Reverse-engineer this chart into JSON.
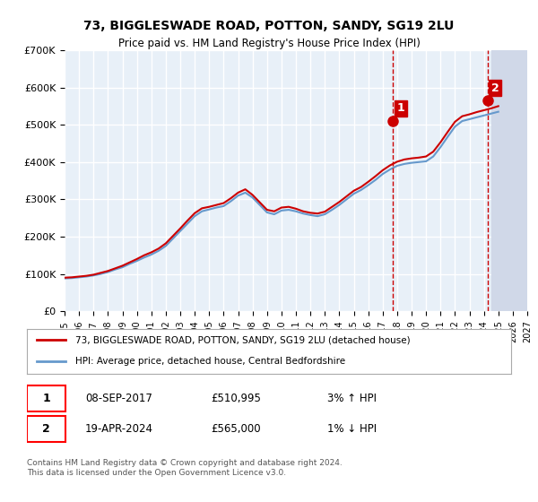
{
  "title": "73, BIGGLESWADE ROAD, POTTON, SANDY, SG19 2LU",
  "subtitle": "Price paid vs. HM Land Registry's House Price Index (HPI)",
  "ylabel": "",
  "xlabel": "",
  "xlim": [
    1995,
    2027
  ],
  "ylim": [
    0,
    700000
  ],
  "yticks": [
    0,
    100000,
    200000,
    300000,
    400000,
    500000,
    600000,
    700000
  ],
  "ytick_labels": [
    "£0",
    "£100K",
    "£200K",
    "£300K",
    "£400K",
    "£500K",
    "£600K",
    "£700K"
  ],
  "xticks": [
    1995,
    1996,
    1997,
    1998,
    1999,
    2000,
    2001,
    2002,
    2003,
    2004,
    2005,
    2006,
    2007,
    2008,
    2009,
    2010,
    2011,
    2012,
    2013,
    2014,
    2015,
    2016,
    2017,
    2018,
    2019,
    2020,
    2021,
    2022,
    2023,
    2024,
    2025,
    2026,
    2027
  ],
  "hpi_x": [
    1995.0,
    1995.5,
    1996.0,
    1996.5,
    1997.0,
    1997.5,
    1998.0,
    1998.5,
    1999.0,
    1999.5,
    2000.0,
    2000.5,
    2001.0,
    2001.5,
    2002.0,
    2002.5,
    2003.0,
    2003.5,
    2004.0,
    2004.5,
    2005.0,
    2005.5,
    2006.0,
    2006.5,
    2007.0,
    2007.5,
    2008.0,
    2008.5,
    2009.0,
    2009.5,
    2010.0,
    2010.5,
    2011.0,
    2011.5,
    2012.0,
    2012.5,
    2013.0,
    2013.5,
    2014.0,
    2014.5,
    2015.0,
    2015.5,
    2016.0,
    2016.5,
    2017.0,
    2017.5,
    2018.0,
    2018.5,
    2019.0,
    2019.5,
    2020.0,
    2020.5,
    2021.0,
    2021.5,
    2022.0,
    2022.5,
    2023.0,
    2023.5,
    2024.0,
    2024.5,
    2025.0
  ],
  "hpi_y": [
    88000,
    89000,
    91000,
    93000,
    96000,
    100000,
    105000,
    112000,
    118000,
    127000,
    135000,
    144000,
    152000,
    162000,
    175000,
    195000,
    215000,
    235000,
    255000,
    268000,
    273000,
    278000,
    282000,
    295000,
    310000,
    318000,
    305000,
    285000,
    265000,
    260000,
    270000,
    272000,
    268000,
    262000,
    258000,
    255000,
    260000,
    272000,
    285000,
    300000,
    315000,
    325000,
    338000,
    352000,
    368000,
    380000,
    390000,
    395000,
    398000,
    400000,
    402000,
    415000,
    440000,
    468000,
    495000,
    510000,
    515000,
    520000,
    525000,
    530000,
    535000
  ],
  "price_x": [
    1995.0,
    1995.5,
    1996.0,
    1996.5,
    1997.0,
    1997.5,
    1998.0,
    1998.5,
    1999.0,
    1999.5,
    2000.0,
    2000.5,
    2001.0,
    2001.5,
    2002.0,
    2002.5,
    2003.0,
    2003.5,
    2004.0,
    2004.5,
    2005.0,
    2005.5,
    2006.0,
    2006.5,
    2007.0,
    2007.5,
    2008.0,
    2008.5,
    2009.0,
    2009.5,
    2010.0,
    2010.5,
    2011.0,
    2011.5,
    2012.0,
    2012.5,
    2013.0,
    2013.5,
    2014.0,
    2014.5,
    2015.0,
    2015.5,
    2016.0,
    2016.5,
    2017.0,
    2017.5,
    2018.0,
    2018.5,
    2019.0,
    2019.5,
    2020.0,
    2020.5,
    2021.0,
    2021.5,
    2022.0,
    2022.5,
    2023.0,
    2023.5,
    2024.0,
    2024.5,
    2025.0
  ],
  "price_y": [
    90000,
    91000,
    93000,
    95000,
    98000,
    103000,
    108000,
    115000,
    122000,
    131000,
    140000,
    150000,
    158000,
    168000,
    182000,
    202000,
    222000,
    243000,
    263000,
    276000,
    280000,
    285000,
    290000,
    303000,
    318000,
    327000,
    312000,
    292000,
    272000,
    268000,
    278000,
    280000,
    275000,
    268000,
    264000,
    262000,
    267000,
    280000,
    293000,
    308000,
    323000,
    333000,
    347000,
    362000,
    378000,
    391000,
    401000,
    407000,
    410000,
    412000,
    415000,
    428000,
    453000,
    481000,
    508000,
    523000,
    528000,
    534000,
    539000,
    544000,
    550000
  ],
  "transaction1_x": 2017.67,
  "transaction1_y": 510995,
  "transaction1_label": "1",
  "transaction1_date": "08-SEP-2017",
  "transaction1_price": "£510,995",
  "transaction1_hpi": "3% ↑ HPI",
  "transaction2_x": 2024.29,
  "transaction2_y": 565000,
  "transaction2_label": "2",
  "transaction2_date": "19-APR-2024",
  "transaction2_price": "£565,000",
  "transaction2_hpi": "1% ↓ HPI",
  "legend_line1": "73, BIGGLESWADE ROAD, POTTON, SANDY, SG19 2LU (detached house)",
  "legend_line2": "HPI: Average price, detached house, Central Bedfordshire",
  "footer": "Contains HM Land Registry data © Crown copyright and database right 2024.\nThis data is licensed under the Open Government Licence v3.0.",
  "line_color_price": "#cc0000",
  "line_color_hpi": "#6699cc",
  "bg_color": "#e8f0f8",
  "grid_color": "#ffffff",
  "marker_color_1": "#cc0000",
  "marker_color_2": "#cc0000",
  "vline_color": "#cc0000",
  "hatched_area_color": "#d0d8e8"
}
